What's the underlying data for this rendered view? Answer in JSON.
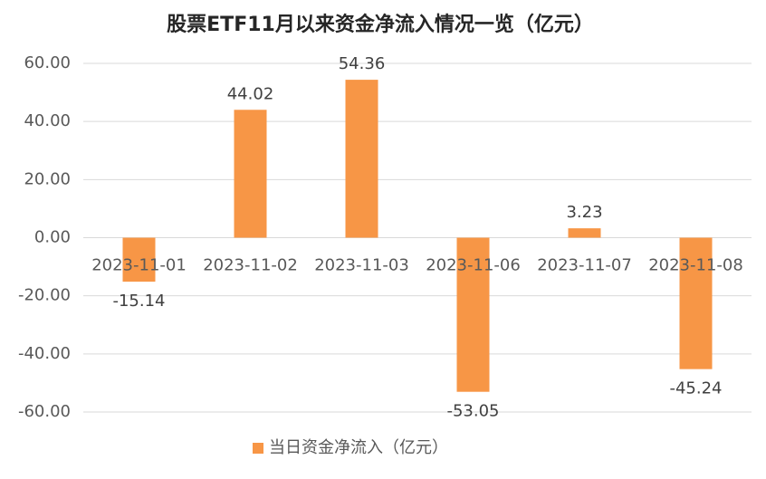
{
  "chart_data": {
    "type": "bar",
    "title": "股票ETF11月以来资金净流入情况一览（亿元）",
    "categories": [
      "2023-11-01",
      "2023-11-02",
      "2023-11-03",
      "2023-11-06",
      "2023-11-07",
      "2023-11-08"
    ],
    "series": [
      {
        "name": "当日资金净流入（亿元）",
        "color": "#f79646",
        "values": [
          -15.14,
          44.02,
          54.36,
          -53.05,
          3.23,
          -45.24
        ]
      }
    ],
    "ylim": [
      -60,
      60
    ],
    "yticks": [
      {
        "value": -60,
        "label": "-60.00"
      },
      {
        "value": -40,
        "label": "-40.00"
      },
      {
        "value": -20,
        "label": "-20.00"
      },
      {
        "value": 0,
        "label": "0.00"
      },
      {
        "value": 20,
        "label": "20.00"
      },
      {
        "value": 40,
        "label": "40.00"
      },
      {
        "value": 60,
        "label": "60.00"
      }
    ],
    "grid": true,
    "legend": "bottom"
  }
}
